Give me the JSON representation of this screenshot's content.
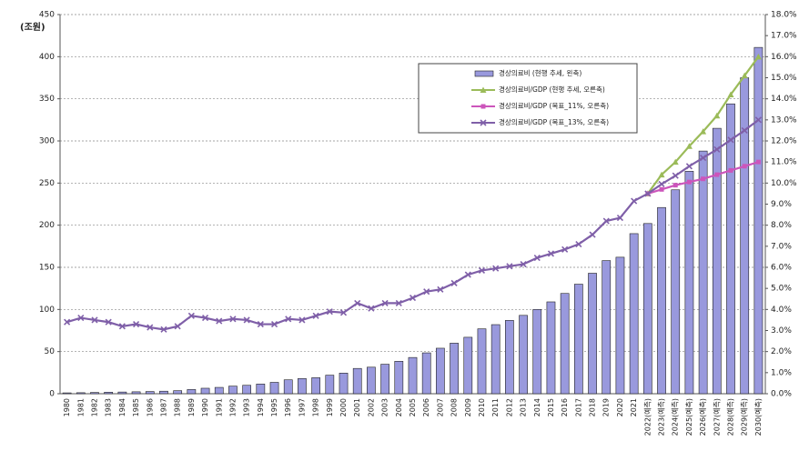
{
  "chart_data": {
    "type": "bar_line",
    "y_label": "(조원)",
    "categories": [
      "1980",
      "1981",
      "1982",
      "1983",
      "1984",
      "1985",
      "1986",
      "1987",
      "1988",
      "1989",
      "1990",
      "1991",
      "1992",
      "1993",
      "1994",
      "1995",
      "1996",
      "1997",
      "1998",
      "1999",
      "2000",
      "2001",
      "2002",
      "2003",
      "2004",
      "2005",
      "2006",
      "2007",
      "2008",
      "2009",
      "2010",
      "2011",
      "2012",
      "2013",
      "2014",
      "2015",
      "2016",
      "2017",
      "2018",
      "2019",
      "2020",
      "2021",
      "2022(예측)",
      "2023(예측)",
      "2024(예측)",
      "2025(예측)",
      "2026(예측)",
      "2027(예측)",
      "2028(예측)",
      "2029(예측)",
      "2030(예측)"
    ],
    "series": [
      {
        "name": "경상의료비 (현행 추세, 왼축)",
        "type": "bar",
        "axis": "y",
        "color": "#9999dd",
        "values": [
          1,
          1.2,
          1.5,
          1.8,
          2,
          2.3,
          2.6,
          3,
          3.6,
          5,
          6.5,
          7.5,
          9,
          10,
          11.5,
          13.5,
          16.5,
          18,
          19,
          22,
          24.5,
          30,
          31.5,
          35,
          38.5,
          43,
          48.5,
          54,
          60,
          67,
          77,
          82,
          87,
          93,
          100,
          109,
          119,
          130,
          143,
          158,
          162,
          190,
          202,
          221,
          242,
          264,
          288,
          315,
          344,
          375,
          411
        ]
      },
      {
        "name": "경상의료비/GDP (현행 추세, 오른축)",
        "type": "line",
        "axis": "y2",
        "color": "#9bbb59",
        "marker": "triangle",
        "values": [
          null,
          null,
          null,
          null,
          null,
          null,
          null,
          null,
          null,
          null,
          null,
          null,
          null,
          null,
          null,
          null,
          null,
          null,
          null,
          null,
          null,
          null,
          null,
          null,
          null,
          null,
          null,
          null,
          null,
          null,
          null,
          null,
          null,
          null,
          null,
          null,
          null,
          null,
          null,
          null,
          null,
          null,
          9.5,
          10.4,
          11.0,
          11.75,
          12.45,
          13.2,
          14.2,
          15.1,
          16.0
        ]
      },
      {
        "name": "경상의료비/GDP (목표_11%, 오른축)",
        "type": "line",
        "axis": "y2",
        "color": "#cc55bb",
        "marker": "square",
        "values": [
          null,
          null,
          null,
          null,
          null,
          null,
          null,
          null,
          null,
          null,
          null,
          null,
          null,
          null,
          null,
          null,
          null,
          null,
          null,
          null,
          null,
          null,
          null,
          null,
          null,
          null,
          null,
          null,
          null,
          null,
          null,
          null,
          null,
          null,
          null,
          null,
          null,
          null,
          null,
          null,
          null,
          null,
          9.5,
          9.7,
          9.9,
          10.05,
          10.2,
          10.4,
          10.6,
          10.8,
          11.0
        ]
      },
      {
        "name": "경상의료비/GDP (목표_13%, 오른축)",
        "type": "line",
        "axis": "y2",
        "color": "#7f5fa8",
        "marker": "x",
        "values": [
          3.4,
          3.6,
          3.5,
          3.4,
          3.2,
          3.3,
          3.15,
          3.05,
          3.2,
          3.7,
          3.6,
          3.45,
          3.55,
          3.5,
          3.3,
          3.3,
          3.55,
          3.5,
          3.7,
          3.9,
          3.85,
          4.3,
          4.05,
          4.3,
          4.3,
          4.55,
          4.85,
          4.95,
          5.25,
          5.65,
          5.85,
          5.95,
          6.05,
          6.15,
          6.45,
          6.65,
          6.85,
          7.1,
          7.55,
          8.2,
          8.35,
          9.15,
          9.5,
          9.95,
          10.35,
          10.8,
          11.2,
          11.6,
          12.05,
          12.5,
          13.0
        ]
      }
    ],
    "ylim": [
      0,
      450
    ],
    "yticks": [
      0,
      50,
      100,
      150,
      200,
      250,
      300,
      350,
      400,
      450
    ],
    "y2lim": [
      0,
      18
    ],
    "y2ticks": [
      {
        "value": 0,
        "label": "0.0%"
      },
      {
        "value": 1,
        "label": "1.0%"
      },
      {
        "value": 2,
        "label": "2.0%"
      },
      {
        "value": 3,
        "label": "3.0%"
      },
      {
        "value": 4,
        "label": "4.0%"
      },
      {
        "value": 5,
        "label": "5.0%"
      },
      {
        "value": 6,
        "label": "6.0%"
      },
      {
        "value": 7,
        "label": "7.0%"
      },
      {
        "value": 8,
        "label": "8.0%"
      },
      {
        "value": 9,
        "label": "9.0%"
      },
      {
        "value": 10,
        "label": "10.0%"
      },
      {
        "value": 11,
        "label": "11.0%"
      },
      {
        "value": 12,
        "label": "12.0%"
      },
      {
        "value": 13,
        "label": "13.0%"
      },
      {
        "value": 14,
        "label": "14.0%"
      },
      {
        "value": 15,
        "label": "15.0%"
      },
      {
        "value": 16,
        "label": "16.0%"
      },
      {
        "value": 17,
        "label": "17.0%"
      },
      {
        "value": 18,
        "label": "18.0%"
      }
    ],
    "grid": true,
    "legend": "upper right"
  }
}
